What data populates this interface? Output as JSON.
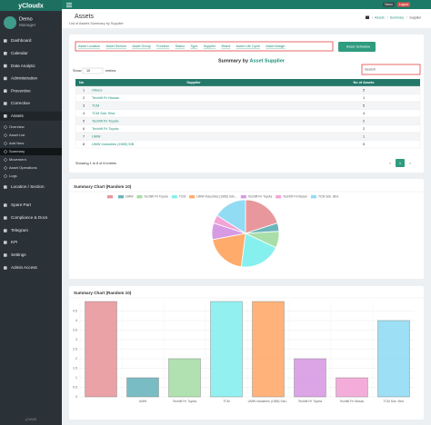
{
  "app": {
    "logo": "yCloudx",
    "user": "Demo",
    "role": "Manager",
    "footer": "yCMMS"
  },
  "topbar": {
    "badge": "Demo",
    "logout": "Logout"
  },
  "sidebar": {
    "menu_top": [
      "Dashboard",
      "Calendar",
      "Data Analytic",
      "Administration",
      "Preventive",
      "Corrective",
      "Assets"
    ],
    "submenu": [
      "Overview",
      "Asset List",
      "Add New",
      "Summary",
      "Movement",
      "Asset Operations",
      "Logs"
    ],
    "menu_bottom": [
      "Location / Section",
      "Spare Part",
      "Compliance & Docs",
      "Telegram",
      "KPI",
      "Settings",
      "Admin Access"
    ]
  },
  "header": {
    "title": "Assets",
    "subtitle": "List of Assets Summary by Supplier",
    "breadcrumb": [
      "Assets",
      "Summary",
      "Supplier"
    ]
  },
  "tabs": [
    "Asset Location",
    "Asset Section",
    "Asset Group",
    "Function",
    "Status",
    "Type",
    "Supplier",
    "Brand",
    "Asset Life Cycle",
    "Asset Assign"
  ],
  "schedule_button": "Asset Schedule",
  "summary": {
    "heading": "Summary by",
    "heading_link": "Asset Supplier",
    "show": "Show",
    "entries_value": "10",
    "entries": "entries",
    "search": "Search"
  },
  "table": {
    "columns": [
      "No",
      "Supplier",
      "No of Assets"
    ],
    "rows": [
      [
        "1",
        "Others",
        "5"
      ],
      [
        "2",
        "Techlift Fri Nissan",
        "1"
      ],
      [
        "3",
        "TCM",
        "5"
      ],
      [
        "4",
        "TCM Sdn. Bhd.",
        "4"
      ],
      [
        "5",
        "Techlift Fri Toyota",
        "2"
      ],
      [
        "6",
        "Techlift Fri Toyota",
        "2"
      ],
      [
        "7",
        "UMW",
        "1"
      ],
      [
        "8",
        "UMW Industries (1985) S/B",
        "5"
      ]
    ],
    "info": "Showing 1 to 8 of 8 entries",
    "pages": [
      "<",
      "1",
      ">"
    ]
  },
  "chart_data": [
    {
      "type": "pie",
      "title": "Summary Chart (Random 10)",
      "categories": [
        null,
        "UMW",
        "Techlift Fri Toyota",
        "TCM",
        "UMW Industries (1985) Sdn...",
        "Techlift Fri Toyota",
        "Techlift Fri Nissan",
        "TCM Sdn. Bhd."
      ],
      "values": [
        5,
        1,
        2,
        5,
        5,
        2,
        1,
        4
      ],
      "colors": [
        "#e8989c",
        "#6bb5bd",
        "#a9dea8",
        "#86f0ee",
        "#ffab6b",
        "#d79be3",
        "#f3a4d6",
        "#92dcf3"
      ]
    },
    {
      "type": "bar",
      "title": "Summary Chart (Random 10)",
      "categories": [
        null,
        "UMW",
        "Techlift Fri Toyota",
        "TCM",
        "UMW Industries (1985) Sdn...",
        "Techlift Fri Toyota",
        "Techlift Fri Nissan",
        "TCM Sdn. Bhd."
      ],
      "values": [
        5,
        1,
        2,
        5,
        5,
        2,
        1,
        4
      ],
      "colors": [
        "#e8989c",
        "#6bb5bd",
        "#a9dea8",
        "#86f0ee",
        "#ffab6b",
        "#d79be3",
        "#f3a4d6",
        "#92dcf3"
      ],
      "ylim": [
        0,
        5
      ],
      "yticks": [
        0,
        0.5,
        1,
        1.5,
        2,
        2.5,
        3,
        3.5,
        4,
        4.5
      ],
      "grid": true
    }
  ]
}
